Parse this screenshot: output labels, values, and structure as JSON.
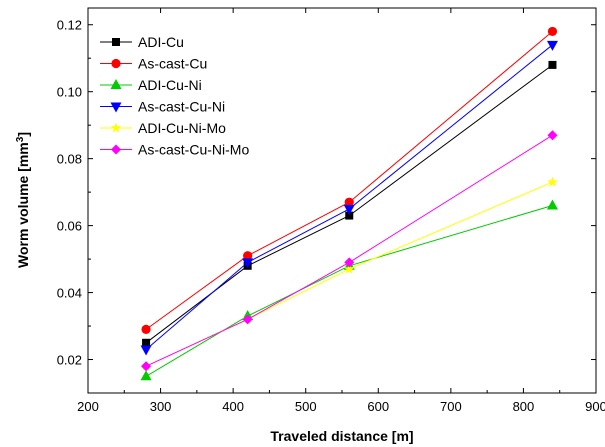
{
  "chart_data": {
    "type": "line",
    "xlabel": "Traveled distance [m]",
    "ylabel": "Worm volume [mm",
    "ylabel_sup": "3",
    "ylabel_end": "]",
    "xlim": [
      200,
      900
    ],
    "ylim": [
      0.01,
      0.125
    ],
    "x_ticks": [
      200,
      300,
      400,
      500,
      600,
      700,
      800,
      900
    ],
    "x_tick_labels": [
      "200",
      "300",
      "400",
      "500",
      "600",
      "700",
      "800",
      "900"
    ],
    "y_ticks": [
      0.02,
      0.04,
      0.06,
      0.08,
      0.1,
      0.12
    ],
    "y_tick_labels": [
      "0.02",
      "0.04",
      "0.06",
      "0.08",
      "0.10",
      "0.12"
    ],
    "legend_position": "top-left",
    "grid": false,
    "x": [
      280,
      420,
      560,
      840
    ],
    "series": [
      {
        "name": "ADI-Cu",
        "color": "#000000",
        "marker": "square",
        "values": [
          0.025,
          0.048,
          0.063,
          0.108
        ]
      },
      {
        "name": "As-cast-Cu",
        "color": "#ff0000",
        "marker": "circle",
        "values": [
          0.029,
          0.051,
          0.067,
          0.118
        ]
      },
      {
        "name": "ADI-Cu-Ni",
        "color": "#00cc00",
        "marker": "triangle-up",
        "values": [
          0.015,
          0.033,
          0.048,
          0.066
        ]
      },
      {
        "name": "As-cast-Cu-Ni",
        "color": "#0000ff",
        "marker": "triangle-down",
        "values": [
          0.023,
          0.049,
          0.065,
          0.114
        ]
      },
      {
        "name": "ADI-Cu-Ni-Mo",
        "color": "#ffff00",
        "marker": "star",
        "values": [
          0.018,
          0.032,
          0.047,
          0.073
        ]
      },
      {
        "name": "As-cast-Cu-Ni-Mo",
        "color": "#ff00ff",
        "marker": "diamond",
        "values": [
          0.018,
          0.032,
          0.049,
          0.087
        ]
      }
    ]
  }
}
